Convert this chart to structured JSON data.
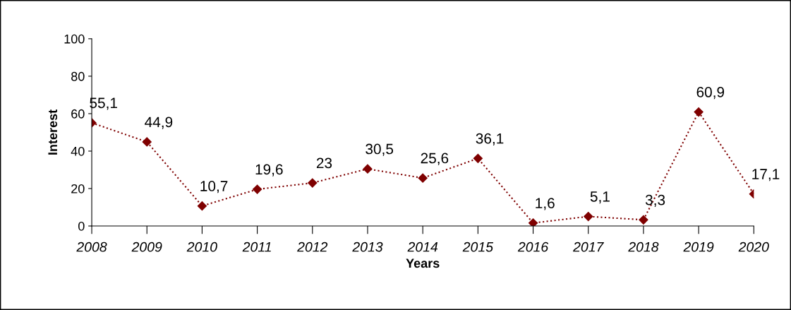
{
  "chart_data": {
    "type": "line",
    "xlabel": "Years",
    "ylabel": "Interest",
    "categories": [
      "2008",
      "2009",
      "2010",
      "2011",
      "2012",
      "2013",
      "2014",
      "2015",
      "2016",
      "2017",
      "2018",
      "2019",
      "2020"
    ],
    "values": [
      55.1,
      44.9,
      10.7,
      19.6,
      23,
      30.5,
      25.6,
      36.1,
      1.6,
      5.1,
      3.3,
      60.9,
      17.1
    ],
    "value_labels": [
      "55,1",
      "44,9",
      "10,7",
      "19,6",
      "23",
      "30,5",
      "25,6",
      "36,1",
      "1,6",
      "5,1",
      "3,3",
      "60,9",
      "17,1"
    ],
    "color": "#7f0000",
    "marker": "diamond",
    "line_style": "dotted",
    "ylim": [
      0,
      100
    ],
    "yticks": [
      0,
      20,
      40,
      60,
      80,
      100
    ],
    "grid": false
  }
}
